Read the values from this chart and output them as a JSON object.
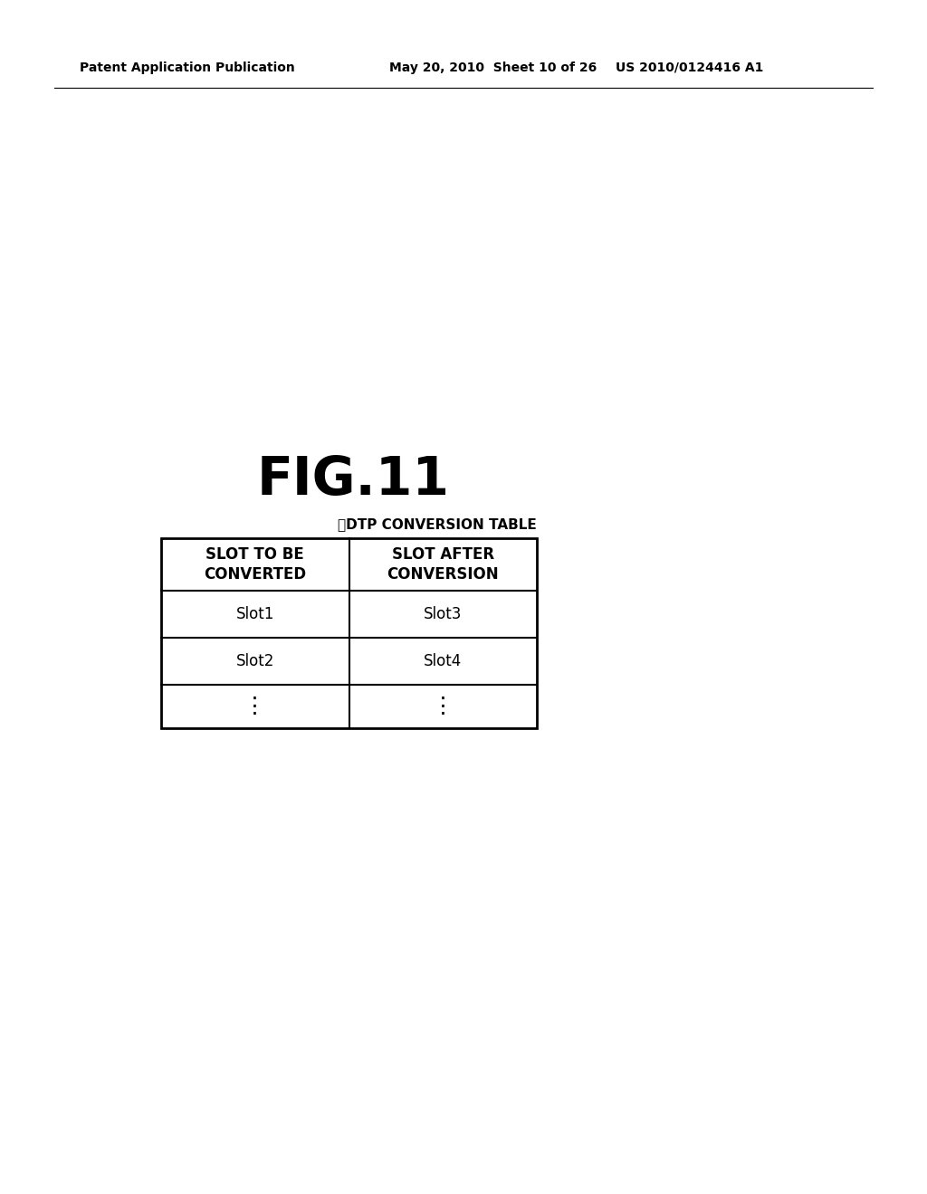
{
  "header_text_left": "Patent Application Publication",
  "header_text_mid": "May 20, 2010  Sheet 10 of 26",
  "header_text_right": "US 2010/0124416 A1",
  "fig_title": "FIG.11",
  "table_label": "。DTP CONVERSION TABLE",
  "col1_header": "SLOT TO BE\nCONVERTED",
  "col2_header": "SLOT AFTER\nCONVERSION",
  "rows": [
    [
      "Slot1",
      "Slot3"
    ],
    [
      "Slot2",
      "Slot4"
    ],
    [
      "⋮",
      "⋮"
    ]
  ],
  "bg_color": "#ffffff",
  "text_color": "#000000",
  "header_fontsize": 10,
  "fig_title_fontsize": 42,
  "table_label_fontsize": 11,
  "col_header_fontsize": 12,
  "cell_fontsize": 12
}
